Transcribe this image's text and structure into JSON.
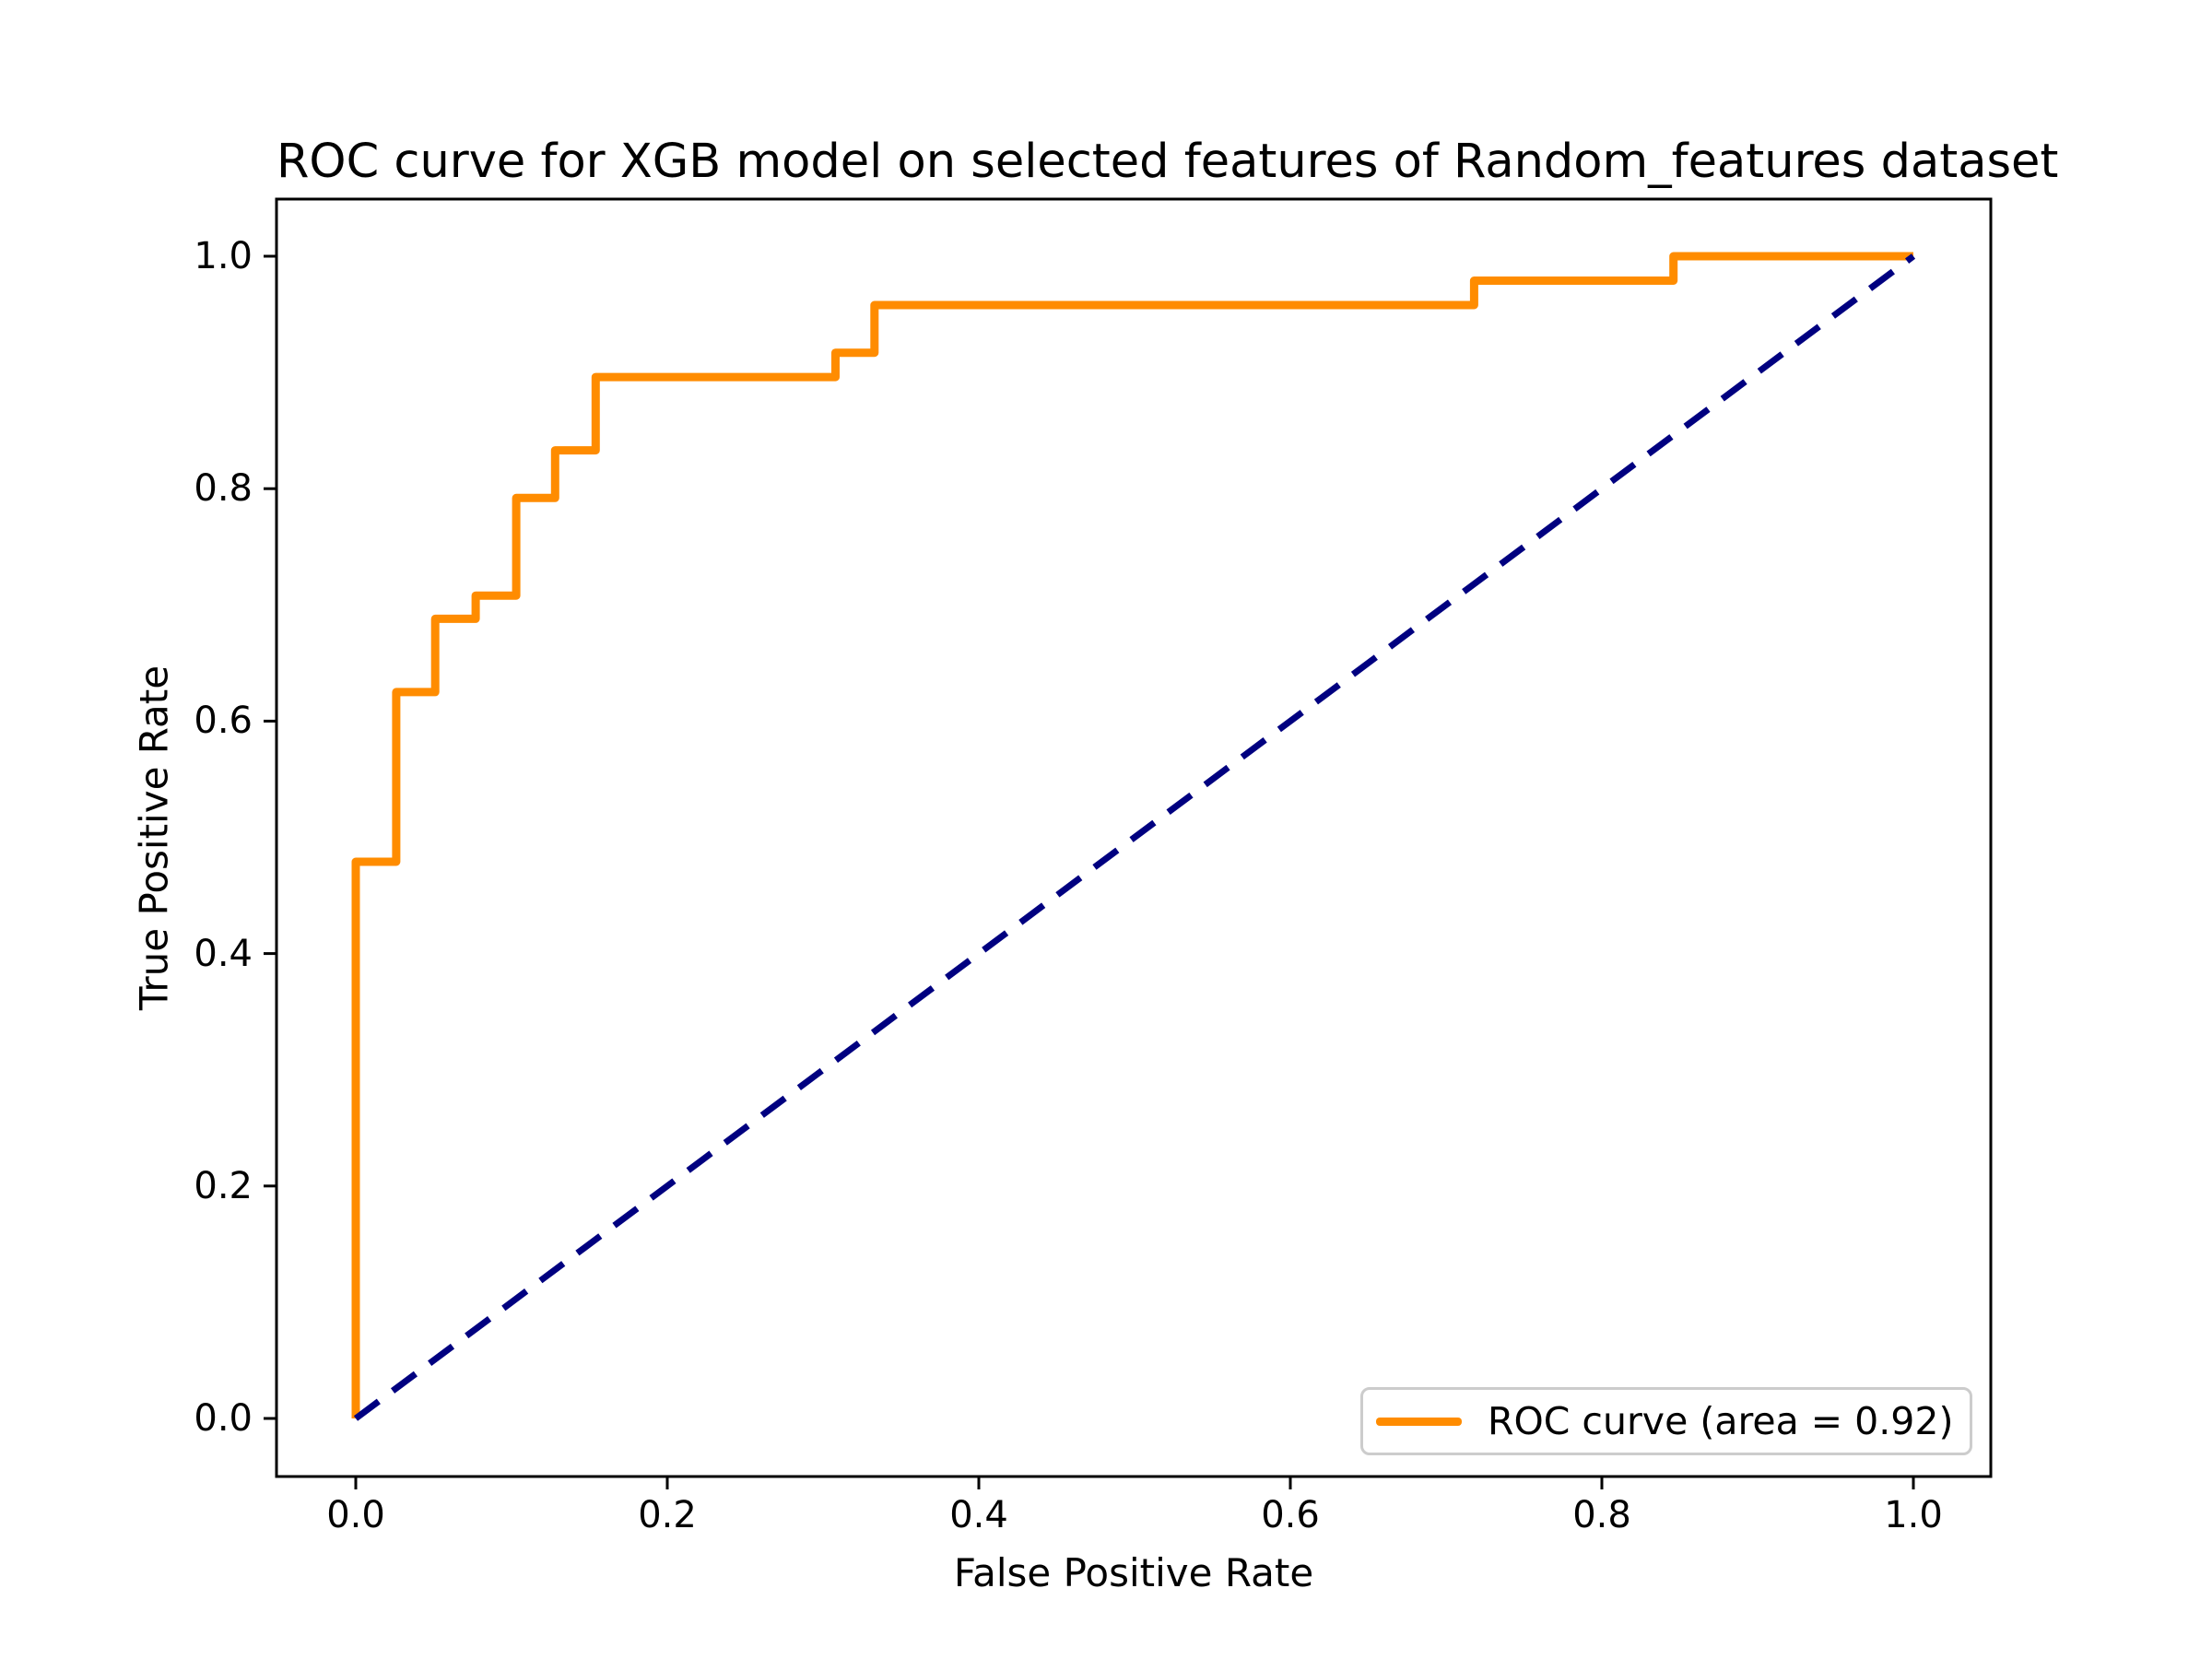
{
  "figure": {
    "background": "#ffffff"
  },
  "chart_data": {
    "type": "line",
    "title": "ROC curve for XGB model on selected features of Random_features dataset",
    "xlabel": "False Positive Rate",
    "ylabel": "True Positive Rate",
    "xlim": [
      -0.05,
      1.05
    ],
    "ylim": [
      -0.05,
      1.05
    ],
    "grid": false,
    "legend_position": "lower right",
    "x_tick_labels": [
      "0.0",
      "0.2",
      "0.4",
      "0.6",
      "0.8",
      "1.0"
    ],
    "y_tick_labels": [
      "0.0",
      "0.2",
      "0.4",
      "0.6",
      "0.8",
      "1.0"
    ],
    "auc": 0.92,
    "series": [
      {
        "name": "ROC curve (area = 0.92)",
        "color": "#ff8c00",
        "style": "solid",
        "points": [
          [
            0.0,
            0.0
          ],
          [
            0.0,
            0.479
          ],
          [
            0.026,
            0.479
          ],
          [
            0.026,
            0.625
          ],
          [
            0.051,
            0.625
          ],
          [
            0.051,
            0.688
          ],
          [
            0.077,
            0.688
          ],
          [
            0.077,
            0.708
          ],
          [
            0.103,
            0.708
          ],
          [
            0.103,
            0.792
          ],
          [
            0.128,
            0.792
          ],
          [
            0.128,
            0.833
          ],
          [
            0.154,
            0.833
          ],
          [
            0.154,
            0.896
          ],
          [
            0.308,
            0.896
          ],
          [
            0.308,
            0.917
          ],
          [
            0.333,
            0.917
          ],
          [
            0.333,
            0.958
          ],
          [
            0.718,
            0.958
          ],
          [
            0.718,
            0.979
          ],
          [
            0.846,
            0.979
          ],
          [
            0.846,
            1.0
          ],
          [
            1.0,
            1.0
          ]
        ]
      },
      {
        "name": "chance-diagonal",
        "color": "#000080",
        "style": "dashed",
        "points": [
          [
            0.0,
            0.0
          ],
          [
            1.0,
            1.0
          ]
        ]
      }
    ]
  },
  "legend": {
    "label": "ROC curve (area = 0.92)",
    "swatch_color": "#ff8c00"
  },
  "colors": {
    "roc": "#ff8c00",
    "chance": "#000080",
    "spine": "#000000",
    "legend_border": "#cccccc"
  }
}
